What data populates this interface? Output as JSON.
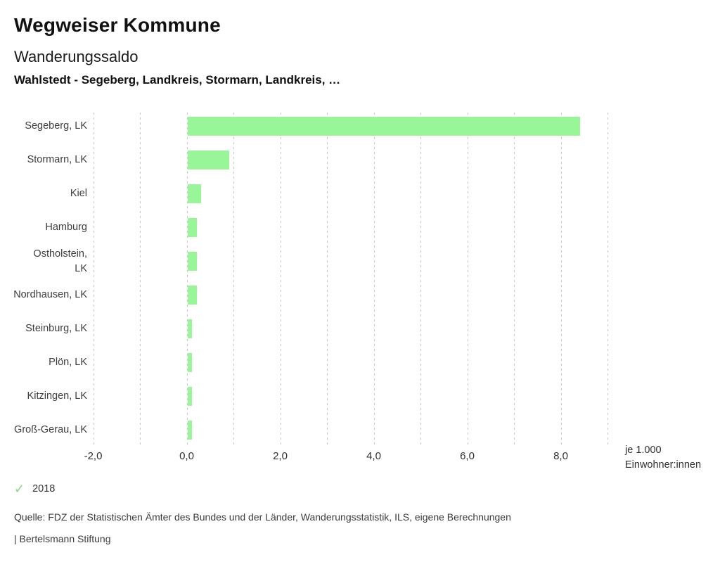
{
  "header": {
    "title": "Wegweiser Kommune",
    "subtitle": "Wanderungssaldo",
    "selection": "Wahlstedt - Segeberg, Landkreis, Stormarn, Landkreis, …"
  },
  "chart_data": {
    "type": "bar",
    "orientation": "horizontal",
    "title": "Wanderungssaldo",
    "categories": [
      "Segeberg, LK",
      "Stormarn, LK",
      "Kiel",
      "Hamburg",
      "Ostholstein,\nLK",
      "Nordhausen, LK",
      "Steinburg, LK",
      "Plön, LK",
      "Kitzingen, LK",
      "Groß-Gerau, LK"
    ],
    "series": [
      {
        "name": "2018",
        "values": [
          8.4,
          0.9,
          0.3,
          0.2,
          0.2,
          0.2,
          0.1,
          0.1,
          0.1,
          0.1
        ]
      }
    ],
    "xlabel": "je 1.000 Einwohner:innen",
    "ylabel": "",
    "xlim": [
      -2,
      9
    ],
    "xticks": [
      {
        "value": -2,
        "label": "-2,0"
      },
      {
        "value": 0,
        "label": "0,0"
      },
      {
        "value": 2,
        "label": "2,0"
      },
      {
        "value": 4,
        "label": "4,0"
      },
      {
        "value": 6,
        "label": "6,0"
      },
      {
        "value": 8,
        "label": "8,0"
      }
    ],
    "gridline_values": [
      -2,
      -1,
      0,
      1,
      2,
      3,
      4,
      5,
      6,
      7,
      8,
      9
    ],
    "grid": "dotted-vertical",
    "bar_color": "#98f598",
    "legend_position": "bottom-left"
  },
  "axis_caption": {
    "line1": "je 1.000",
    "line2": "Einwohner:innen"
  },
  "legend": {
    "icon": "check-icon",
    "glyph": "✓",
    "color": "#7edc7e",
    "label": "2018"
  },
  "source": "Quelle: FDZ der Statistischen Ämter des Bundes und der Länder, Wanderungsstatistik, ILS, eigene Berechnungen",
  "footer": "| Bertelsmann Stiftung"
}
